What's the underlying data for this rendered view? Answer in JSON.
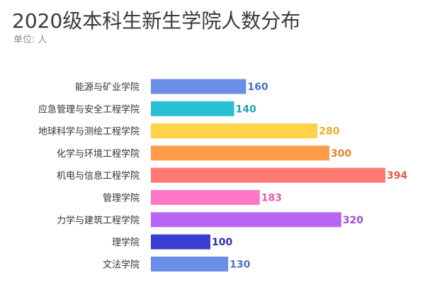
{
  "chart_data": {
    "type": "bar",
    "orientation": "horizontal",
    "title": "2020级本科生新生学院人数分布",
    "subtitle": "单位: 人",
    "xlabel": "",
    "ylabel": "",
    "xlim": [
      0,
      394
    ],
    "grid": false,
    "legend": "none",
    "categories": [
      "能源与矿业学院",
      "应急管理与安全工程学院",
      "地球科学与测绘工程学院",
      "化学与环境工程学院",
      "机电与信息工程学院",
      "管理学院",
      "力学与建筑工程学院",
      "理学院",
      "文法学院"
    ],
    "values": [
      160,
      140,
      280,
      300,
      394,
      183,
      320,
      100,
      130
    ],
    "colors": [
      "#6b8ee8",
      "#27c1d3",
      "#ffd24a",
      "#ff9a48",
      "#ff7a70",
      "#ff78c8",
      "#b866f2",
      "#3a3ed2",
      "#6b8ee8"
    ],
    "label_colors": [
      "#4f6fc2",
      "#1fa5b5",
      "#e3b21f",
      "#e8842f",
      "#e65a50",
      "#e85aa8",
      "#9b4fd6",
      "#2a2eb0",
      "#4f6fc2"
    ]
  }
}
